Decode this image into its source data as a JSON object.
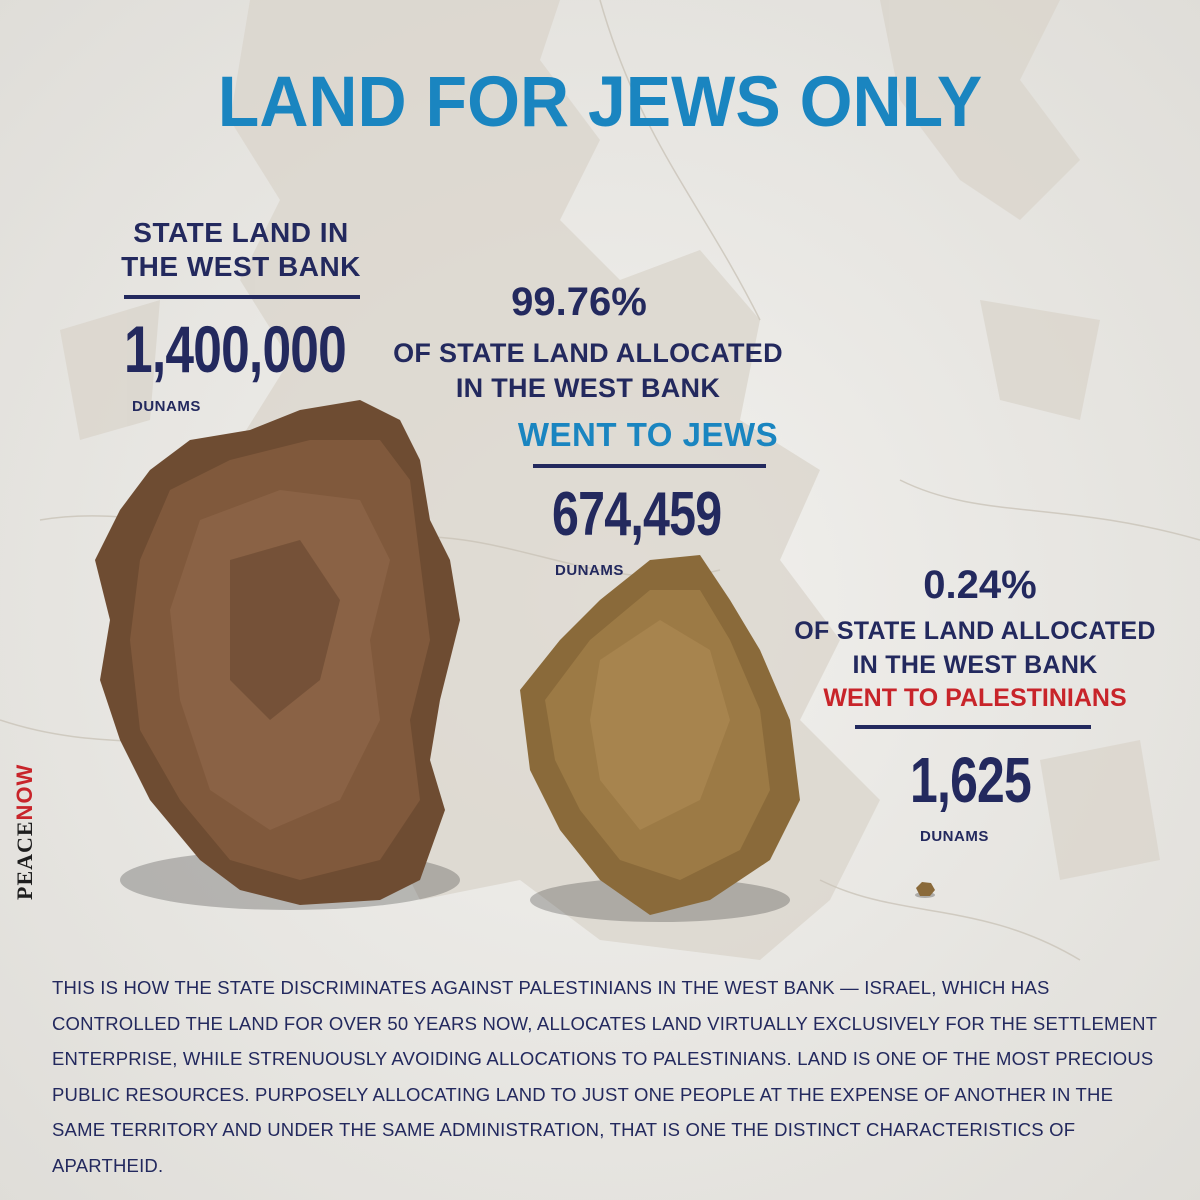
{
  "headline": "LAND FOR JEWS ONLY",
  "state_land": {
    "title_line1": "STATE LAND IN",
    "title_line2": "THE WEST BANK",
    "value": "1,400,000",
    "unit": "DUNAMS"
  },
  "jews": {
    "percent": "99.76%",
    "desc_line1": "OF STATE LAND ALLOCATED",
    "desc_line2": "IN THE WEST BANK",
    "went": "WENT TO JEWS",
    "value": "674,459",
    "unit": "DUNAMS"
  },
  "palestinians": {
    "percent": "0.24%",
    "desc_line1": "OF STATE LAND ALLOCATED",
    "desc_line2": "IN THE WEST BANK",
    "went": "WENT TO PALESTINIANS",
    "value": "1,625",
    "unit": "DUNAMS"
  },
  "brand": {
    "word1": "PEACE",
    "word2": "NOW"
  },
  "body_text": "This is how the state discriminates against Palestinians in the West Bank — Israel, which has controlled the land for over 50 years now, allocates land virtually exclusively for the settlement enterprise, while strenuously avoiding allocations to Palestinians. Land is one of the most precious public resources. Purposely allocating land to just one people at the expense of another in the same territory and under the same administration, that is one the distinct characteristics of apartheid.",
  "colors": {
    "navy": "#23295e",
    "blue": "#1a85c0",
    "red": "#c8242a",
    "background": "#ecebe8"
  }
}
